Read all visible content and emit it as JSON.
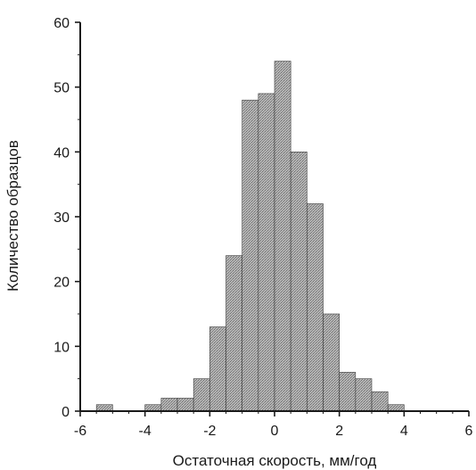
{
  "chart_data": {
    "type": "bar",
    "title": "",
    "xlabel": "Остаточная скорость, мм/год",
    "ylabel": "Количество образцов",
    "xlim": [
      -6,
      6
    ],
    "ylim": [
      0,
      60
    ],
    "xticks": [
      -6,
      -4,
      -2,
      0,
      2,
      4,
      6
    ],
    "yticks": [
      0,
      10,
      20,
      30,
      40,
      50,
      60
    ],
    "xtick_labels": [
      "-6",
      "-4",
      "-2",
      "0",
      "2",
      "4",
      "6"
    ],
    "ytick_labels": [
      "0",
      "10",
      "20",
      "30",
      "40",
      "50",
      "60"
    ],
    "bin_width": 0.5,
    "bins": [
      {
        "x0": -5.5,
        "x1": -5.0,
        "count": 1
      },
      {
        "x0": -5.0,
        "x1": -4.5,
        "count": 0
      },
      {
        "x0": -4.5,
        "x1": -4.0,
        "count": 0
      },
      {
        "x0": -4.0,
        "x1": -3.5,
        "count": 1
      },
      {
        "x0": -3.5,
        "x1": -3.0,
        "count": 2
      },
      {
        "x0": -3.0,
        "x1": -2.5,
        "count": 2
      },
      {
        "x0": -2.5,
        "x1": -2.0,
        "count": 5
      },
      {
        "x0": -2.0,
        "x1": -1.5,
        "count": 13
      },
      {
        "x0": -1.5,
        "x1": -1.0,
        "count": 24
      },
      {
        "x0": -1.0,
        "x1": -0.5,
        "count": 48
      },
      {
        "x0": -0.5,
        "x1": 0.0,
        "count": 49
      },
      {
        "x0": 0.0,
        "x1": 0.5,
        "count": 54
      },
      {
        "x0": 0.5,
        "x1": 1.0,
        "count": 40
      },
      {
        "x0": 1.0,
        "x1": 1.5,
        "count": 32
      },
      {
        "x0": 1.5,
        "x1": 2.0,
        "count": 15
      },
      {
        "x0": 2.0,
        "x1": 2.5,
        "count": 6
      },
      {
        "x0": 2.5,
        "x1": 3.0,
        "count": 5
      },
      {
        "x0": 3.0,
        "x1": 3.5,
        "count": 3
      },
      {
        "x0": 3.5,
        "x1": 4.0,
        "count": 1
      }
    ],
    "grid": false,
    "colors": {
      "bar_fill": "#a8a8a8",
      "bar_stroke": "#3a3a3a",
      "axis": "#1a1a1a"
    }
  }
}
